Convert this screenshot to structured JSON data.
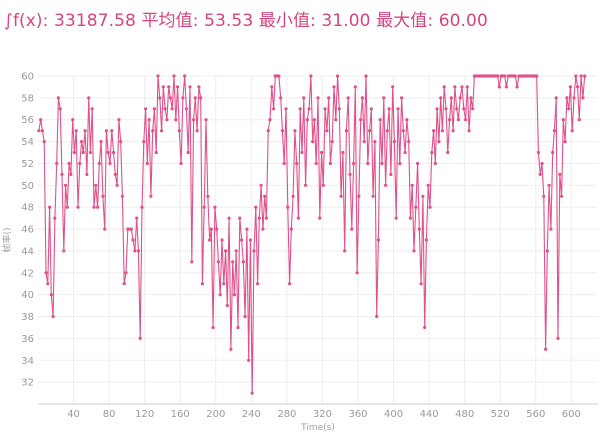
{
  "stats": {
    "integral": "∫f(x): 33187.58",
    "avg": "平均值: 53.53",
    "min": "最小值: 31.00",
    "max": "最大值: 60.00"
  },
  "colors": {
    "series": "#e0508a",
    "text": "#d5447f",
    "grid": "#eeeeee",
    "axis": "#cccccc"
  },
  "chart_data": {
    "type": "line",
    "xlabel": "Time(s)",
    "ylabel": "帧率()",
    "xlim": [
      0,
      630
    ],
    "ylim": [
      30,
      60
    ],
    "xticks": [
      40,
      80,
      120,
      160,
      200,
      240,
      280,
      320,
      360,
      400,
      440,
      480,
      520,
      560,
      600
    ],
    "yticks": [
      32,
      34,
      36,
      38,
      40,
      42,
      44,
      46,
      48,
      50,
      52,
      54,
      56,
      58,
      60
    ],
    "grid": true,
    "series": [
      {
        "values": [
          [
            1,
            55
          ],
          [
            3,
            56
          ],
          [
            5,
            55
          ],
          [
            7,
            54
          ],
          [
            9,
            42
          ],
          [
            11,
            41
          ],
          [
            13,
            48
          ],
          [
            15,
            40
          ],
          [
            17,
            38
          ],
          [
            19,
            47
          ],
          [
            21,
            52
          ],
          [
            23,
            58
          ],
          [
            25,
            57
          ],
          [
            27,
            51
          ],
          [
            29,
            44
          ],
          [
            31,
            50
          ],
          [
            33,
            48
          ],
          [
            35,
            52
          ],
          [
            37,
            51
          ],
          [
            39,
            56
          ],
          [
            41,
            53
          ],
          [
            43,
            55
          ],
          [
            45,
            48
          ],
          [
            47,
            52
          ],
          [
            49,
            54
          ],
          [
            51,
            53
          ],
          [
            53,
            55
          ],
          [
            55,
            51
          ],
          [
            57,
            58
          ],
          [
            59,
            53
          ],
          [
            61,
            57
          ],
          [
            63,
            48
          ],
          [
            65,
            50
          ],
          [
            67,
            48
          ],
          [
            69,
            52
          ],
          [
            71,
            54
          ],
          [
            73,
            49
          ],
          [
            75,
            46
          ],
          [
            77,
            55
          ],
          [
            79,
            53
          ],
          [
            81,
            52
          ],
          [
            83,
            55
          ],
          [
            85,
            53
          ],
          [
            87,
            51
          ],
          [
            89,
            50
          ],
          [
            91,
            56
          ],
          [
            93,
            54
          ],
          [
            95,
            49
          ],
          [
            97,
            41
          ],
          [
            99,
            42
          ],
          [
            101,
            46
          ],
          [
            103,
            46
          ],
          [
            105,
            46
          ],
          [
            107,
            45
          ],
          [
            109,
            44
          ],
          [
            111,
            47
          ],
          [
            113,
            44
          ],
          [
            115,
            36
          ],
          [
            117,
            48
          ],
          [
            119,
            54
          ],
          [
            121,
            57
          ],
          [
            123,
            52
          ],
          [
            125,
            56
          ],
          [
            127,
            49
          ],
          [
            129,
            55
          ],
          [
            131,
            57
          ],
          [
            133,
            53
          ],
          [
            135,
            60
          ],
          [
            137,
            58
          ],
          [
            139,
            55
          ],
          [
            141,
            59
          ],
          [
            143,
            57
          ],
          [
            145,
            56
          ],
          [
            147,
            59
          ],
          [
            149,
            58
          ],
          [
            151,
            57
          ],
          [
            153,
            60
          ],
          [
            155,
            56
          ],
          [
            157,
            59
          ],
          [
            159,
            55
          ],
          [
            161,
            52
          ],
          [
            163,
            58
          ],
          [
            165,
            60
          ],
          [
            167,
            57
          ],
          [
            169,
            53
          ],
          [
            171,
            59
          ],
          [
            173,
            43
          ],
          [
            175,
            56
          ],
          [
            177,
            58
          ],
          [
            179,
            55
          ],
          [
            181,
            59
          ],
          [
            183,
            58
          ],
          [
            185,
            41
          ],
          [
            187,
            48
          ],
          [
            189,
            56
          ],
          [
            191,
            49
          ],
          [
            193,
            45
          ],
          [
            195,
            46
          ],
          [
            197,
            37
          ],
          [
            199,
            48
          ],
          [
            201,
            46
          ],
          [
            203,
            43
          ],
          [
            205,
            40
          ],
          [
            207,
            45
          ],
          [
            209,
            41
          ],
          [
            211,
            44
          ],
          [
            213,
            39
          ],
          [
            215,
            47
          ],
          [
            217,
            35
          ],
          [
            219,
            43
          ],
          [
            221,
            40
          ],
          [
            223,
            44
          ],
          [
            225,
            37
          ],
          [
            227,
            47
          ],
          [
            229,
            45
          ],
          [
            231,
            43
          ],
          [
            233,
            38
          ],
          [
            235,
            46
          ],
          [
            237,
            34
          ],
          [
            239,
            45
          ],
          [
            241,
            31
          ],
          [
            243,
            44
          ],
          [
            245,
            48
          ],
          [
            247,
            41
          ],
          [
            249,
            47
          ],
          [
            251,
            50
          ],
          [
            253,
            46
          ],
          [
            255,
            49
          ],
          [
            257,
            47
          ],
          [
            259,
            55
          ],
          [
            261,
            56
          ],
          [
            263,
            59
          ],
          [
            265,
            57
          ],
          [
            267,
            60
          ],
          [
            269,
            60
          ],
          [
            271,
            60
          ],
          [
            273,
            58
          ],
          [
            275,
            55
          ],
          [
            277,
            52
          ],
          [
            279,
            57
          ],
          [
            281,
            48
          ],
          [
            283,
            41
          ],
          [
            285,
            46
          ],
          [
            287,
            49
          ],
          [
            289,
            55
          ],
          [
            291,
            52
          ],
          [
            293,
            47
          ],
          [
            295,
            57
          ],
          [
            297,
            53
          ],
          [
            299,
            58
          ],
          [
            301,
            50
          ],
          [
            303,
            56
          ],
          [
            305,
            57
          ],
          [
            307,
            60
          ],
          [
            309,
            54
          ],
          [
            311,
            56
          ],
          [
            313,
            52
          ],
          [
            315,
            58
          ],
          [
            317,
            47
          ],
          [
            319,
            53
          ],
          [
            321,
            50
          ],
          [
            323,
            57
          ],
          [
            325,
            55
          ],
          [
            327,
            58
          ],
          [
            329,
            52
          ],
          [
            331,
            54
          ],
          [
            333,
            59
          ],
          [
            335,
            56
          ],
          [
            337,
            60
          ],
          [
            339,
            57
          ],
          [
            341,
            49
          ],
          [
            343,
            53
          ],
          [
            345,
            44
          ],
          [
            347,
            55
          ],
          [
            349,
            58
          ],
          [
            351,
            51
          ],
          [
            353,
            46
          ],
          [
            355,
            52
          ],
          [
            357,
            59
          ],
          [
            359,
            42
          ],
          [
            361,
            49
          ],
          [
            363,
            56
          ],
          [
            365,
            58
          ],
          [
            367,
            54
          ],
          [
            369,
            60
          ],
          [
            371,
            52
          ],
          [
            373,
            55
          ],
          [
            375,
            57
          ],
          [
            377,
            49
          ],
          [
            379,
            54
          ],
          [
            381,
            38
          ],
          [
            383,
            45
          ],
          [
            385,
            56
          ],
          [
            387,
            52
          ],
          [
            389,
            58
          ],
          [
            391,
            50
          ],
          [
            393,
            55
          ],
          [
            395,
            57
          ],
          [
            397,
            51
          ],
          [
            399,
            59
          ],
          [
            401,
            54
          ],
          [
            403,
            47
          ],
          [
            405,
            57
          ],
          [
            407,
            52
          ],
          [
            409,
            58
          ],
          [
            411,
            55
          ],
          [
            413,
            53
          ],
          [
            415,
            56
          ],
          [
            417,
            54
          ],
          [
            419,
            47
          ],
          [
            421,
            50
          ],
          [
            423,
            44
          ],
          [
            425,
            48
          ],
          [
            427,
            52
          ],
          [
            429,
            46
          ],
          [
            431,
            41
          ],
          [
            433,
            49
          ],
          [
            435,
            37
          ],
          [
            437,
            45
          ],
          [
            439,
            50
          ],
          [
            441,
            48
          ],
          [
            443,
            53
          ],
          [
            445,
            55
          ],
          [
            447,
            52
          ],
          [
            449,
            57
          ],
          [
            451,
            54
          ],
          [
            453,
            58
          ],
          [
            455,
            55
          ],
          [
            457,
            59
          ],
          [
            459,
            57
          ],
          [
            461,
            53
          ],
          [
            463,
            56
          ],
          [
            465,
            58
          ],
          [
            467,
            55
          ],
          [
            469,
            59
          ],
          [
            471,
            57
          ],
          [
            473,
            56
          ],
          [
            475,
            58
          ],
          [
            477,
            59
          ],
          [
            479,
            57
          ],
          [
            481,
            56
          ],
          [
            483,
            59
          ],
          [
            485,
            55
          ],
          [
            487,
            58
          ],
          [
            489,
            57
          ],
          [
            491,
            60
          ],
          [
            493,
            60
          ],
          [
            495,
            60
          ],
          [
            497,
            60
          ],
          [
            499,
            60
          ],
          [
            501,
            60
          ],
          [
            503,
            60
          ],
          [
            505,
            60
          ],
          [
            507,
            60
          ],
          [
            509,
            60
          ],
          [
            511,
            60
          ],
          [
            513,
            60
          ],
          [
            515,
            60
          ],
          [
            517,
            60
          ],
          [
            519,
            59
          ],
          [
            521,
            60
          ],
          [
            523,
            60
          ],
          [
            525,
            60
          ],
          [
            527,
            59
          ],
          [
            529,
            60
          ],
          [
            531,
            60
          ],
          [
            533,
            60
          ],
          [
            535,
            60
          ],
          [
            537,
            60
          ],
          [
            539,
            59
          ],
          [
            541,
            60
          ],
          [
            543,
            60
          ],
          [
            545,
            60
          ],
          [
            547,
            60
          ],
          [
            549,
            60
          ],
          [
            551,
            60
          ],
          [
            553,
            60
          ],
          [
            555,
            60
          ],
          [
            557,
            60
          ],
          [
            559,
            60
          ],
          [
            561,
            60
          ],
          [
            563,
            53
          ],
          [
            565,
            51
          ],
          [
            567,
            52
          ],
          [
            569,
            49
          ],
          [
            571,
            35
          ],
          [
            573,
            44
          ],
          [
            575,
            50
          ],
          [
            577,
            46
          ],
          [
            579,
            53
          ],
          [
            581,
            55
          ],
          [
            583,
            58
          ],
          [
            585,
            36
          ],
          [
            587,
            51
          ],
          [
            589,
            49
          ],
          [
            591,
            56
          ],
          [
            593,
            54
          ],
          [
            595,
            58
          ],
          [
            597,
            57
          ],
          [
            599,
            59
          ],
          [
            601,
            55
          ],
          [
            603,
            58
          ],
          [
            605,
            60
          ],
          [
            607,
            59
          ],
          [
            609,
            56
          ],
          [
            611,
            60
          ],
          [
            613,
            58
          ],
          [
            615,
            60
          ]
        ]
      }
    ]
  }
}
